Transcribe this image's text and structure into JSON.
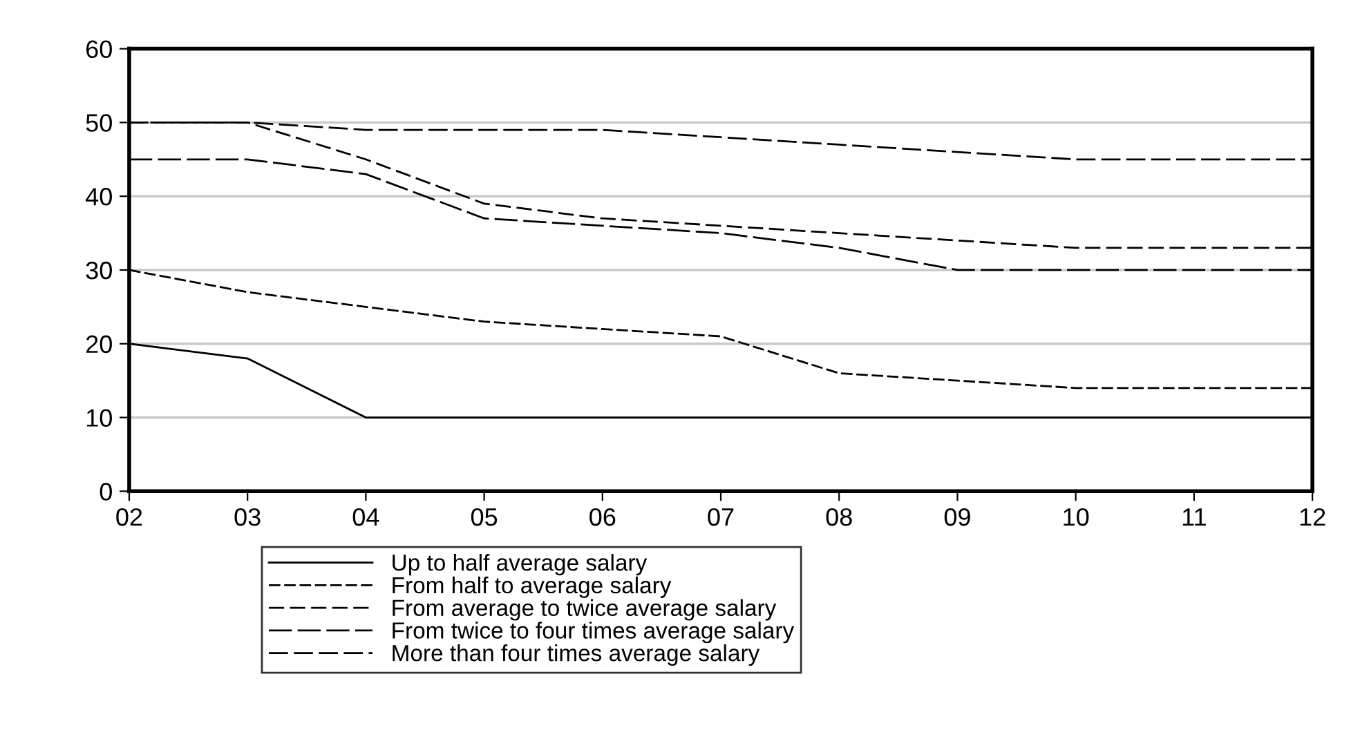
{
  "chart_data": {
    "type": "line",
    "categories": [
      "02",
      "03",
      "04",
      "05",
      "06",
      "07",
      "08",
      "09",
      "10",
      "11",
      "12"
    ],
    "series": [
      {
        "name": "Up to half average salary",
        "color": "#000000",
        "line_style": "solid",
        "values": [
          20,
          18,
          10,
          10,
          10,
          10,
          10,
          10,
          10,
          10,
          10
        ]
      },
      {
        "name": "From half to average salary",
        "color": "#000000",
        "line_style": "dashed",
        "values": [
          30,
          27,
          25,
          23,
          22,
          21,
          16,
          15,
          14,
          14,
          14
        ]
      },
      {
        "name": "From average to twice average salary",
        "color": "#000000",
        "line_style": "dashed",
        "values": [
          50,
          50,
          45,
          39,
          37,
          36,
          35,
          34,
          33,
          33,
          33
        ]
      },
      {
        "name": "From twice to four times average salary",
        "color": "#000000",
        "line_style": "dashed",
        "values": [
          45,
          45,
          43,
          37,
          36,
          35,
          33,
          30,
          30,
          30,
          30
        ]
      },
      {
        "name": "More than four times average salary",
        "color": "#000000",
        "line_style": "dashed",
        "values": [
          50,
          50,
          49,
          49,
          49,
          48,
          47,
          46,
          45,
          45,
          45
        ]
      }
    ],
    "ylim": [
      0,
      60
    ],
    "yticks": [
      0,
      10,
      20,
      30,
      40,
      50,
      60
    ],
    "grid": "y",
    "legend": "bottom",
    "marker": "none"
  }
}
